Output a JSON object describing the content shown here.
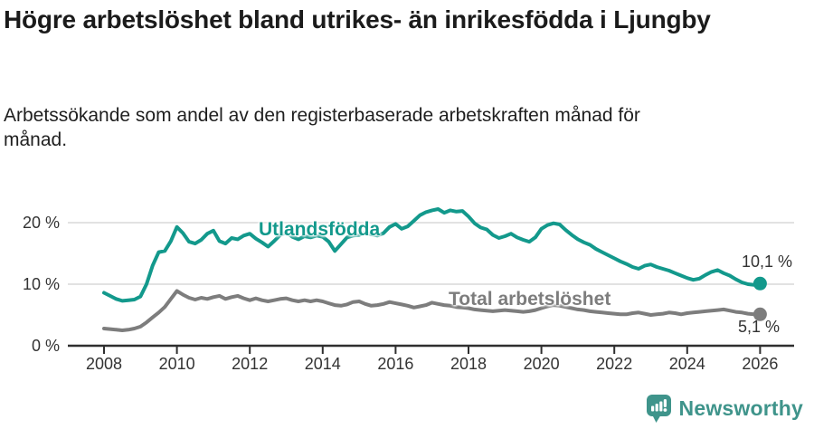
{
  "footer": {
    "brand": "Newsworthy",
    "logo_icon": "bar-chart-speech-bubble-icon"
  },
  "colors": {
    "teal_series": "#13998c",
    "gray_series": "#7d7d7d",
    "gridline": "#d9d9d9",
    "axis": "#2f2f2f",
    "tick_text": "#333333",
    "title_text": "#1b1b1b",
    "brand_teal": "#3f948b"
  },
  "chart_data": {
    "type": "line",
    "title": "Högre arbetslöshet bland utrikes- än inrikesfödda i Ljungby",
    "subtitle": "Arbetssökande som andel av den registerbaserade arbetskraften månad för månad.",
    "x_start_year": 2008.0,
    "x_step_years": 0.16667,
    "x_ticks": [
      2008,
      2010,
      2012,
      2014,
      2016,
      2018,
      2020,
      2022,
      2024,
      2026
    ],
    "y_ticks": [
      {
        "value": 0,
        "label": "0 %"
      },
      {
        "value": 10,
        "label": "10 %"
      },
      {
        "value": 20,
        "label": "20 %"
      }
    ],
    "ylim": [
      0,
      24
    ],
    "xlim": [
      2007.8,
      2026.9
    ],
    "grid": "horizontal",
    "legend_position": "inline-labels",
    "series": [
      {
        "name": "Utlandsfödda",
        "color": "#13998c",
        "end_label": "10,1 %",
        "end_value": 10.1,
        "values": [
          8.6,
          8.1,
          7.6,
          7.3,
          7.4,
          7.5,
          8.0,
          10.0,
          13.0,
          15.2,
          15.4,
          17.0,
          19.3,
          18.3,
          16.9,
          16.6,
          17.2,
          18.2,
          18.7,
          17.0,
          16.6,
          17.5,
          17.3,
          17.9,
          18.2,
          17.4,
          16.8,
          16.1,
          17.0,
          18.0,
          18.4,
          17.7,
          17.3,
          17.8,
          17.6,
          17.9,
          17.7,
          16.9,
          15.4,
          16.5,
          17.6,
          17.9,
          18.0,
          18.4,
          18.1,
          17.9,
          18.3,
          19.3,
          19.8,
          19.0,
          19.4,
          20.3,
          21.2,
          21.7,
          22.0,
          22.2,
          21.6,
          22.0,
          21.8,
          21.9,
          21.0,
          19.9,
          19.2,
          18.9,
          18.0,
          17.5,
          17.8,
          18.2,
          17.6,
          17.2,
          16.9,
          17.6,
          19.0,
          19.6,
          19.9,
          19.7,
          18.8,
          18.0,
          17.3,
          16.8,
          16.4,
          15.7,
          15.2,
          14.7,
          14.2,
          13.7,
          13.3,
          12.8,
          12.5,
          13.0,
          13.2,
          12.8,
          12.5,
          12.2,
          11.8,
          11.4,
          11.0,
          10.7,
          10.9,
          11.5,
          12.0,
          12.3,
          11.8,
          11.4,
          10.8,
          10.3,
          10.0,
          9.9,
          10.1
        ]
      },
      {
        "name": "Total arbetslöshet",
        "color": "#7d7d7d",
        "end_label": "5,1 %",
        "end_value": 5.1,
        "values": [
          2.8,
          2.7,
          2.6,
          2.5,
          2.6,
          2.8,
          3.1,
          3.8,
          4.6,
          5.4,
          6.3,
          7.6,
          8.9,
          8.3,
          7.8,
          7.5,
          7.8,
          7.6,
          7.9,
          8.1,
          7.6,
          7.9,
          8.1,
          7.7,
          7.4,
          7.7,
          7.4,
          7.2,
          7.4,
          7.6,
          7.7,
          7.4,
          7.2,
          7.4,
          7.2,
          7.4,
          7.2,
          6.9,
          6.6,
          6.5,
          6.7,
          7.1,
          7.2,
          6.8,
          6.5,
          6.6,
          6.8,
          7.1,
          6.9,
          6.7,
          6.5,
          6.2,
          6.4,
          6.6,
          7.0,
          6.8,
          6.6,
          6.5,
          6.3,
          6.2,
          6.1,
          5.9,
          5.8,
          5.7,
          5.6,
          5.7,
          5.8,
          5.7,
          5.6,
          5.5,
          5.6,
          5.8,
          6.1,
          6.4,
          6.6,
          6.5,
          6.3,
          6.1,
          5.9,
          5.8,
          5.6,
          5.5,
          5.4,
          5.3,
          5.2,
          5.1,
          5.1,
          5.3,
          5.4,
          5.2,
          5.0,
          5.1,
          5.2,
          5.4,
          5.3,
          5.1,
          5.3,
          5.4,
          5.5,
          5.6,
          5.7,
          5.8,
          5.9,
          5.7,
          5.5,
          5.4,
          5.2,
          5.1,
          5.1
        ]
      }
    ]
  }
}
